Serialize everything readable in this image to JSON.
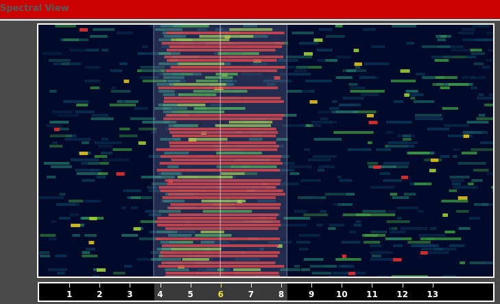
{
  "window": {
    "title": "Spectral View"
  },
  "spectrogram": {
    "background": "#020a2c",
    "palette": [
      "#0a3a5a",
      "#1f7a6a",
      "#3fa83f",
      "#9ccc3a",
      "#e0c020",
      "#e03030"
    ],
    "selection": {
      "start": 3.8,
      "end": 8.2,
      "cursor": 6
    }
  },
  "ruler": {
    "min": 0,
    "max": 15,
    "ticks": [
      1,
      2,
      3,
      4,
      5,
      6,
      7,
      8,
      9,
      10,
      11,
      12,
      13
    ],
    "active": 6,
    "label_color": "#ffffff",
    "active_color": "#f2e43a"
  }
}
